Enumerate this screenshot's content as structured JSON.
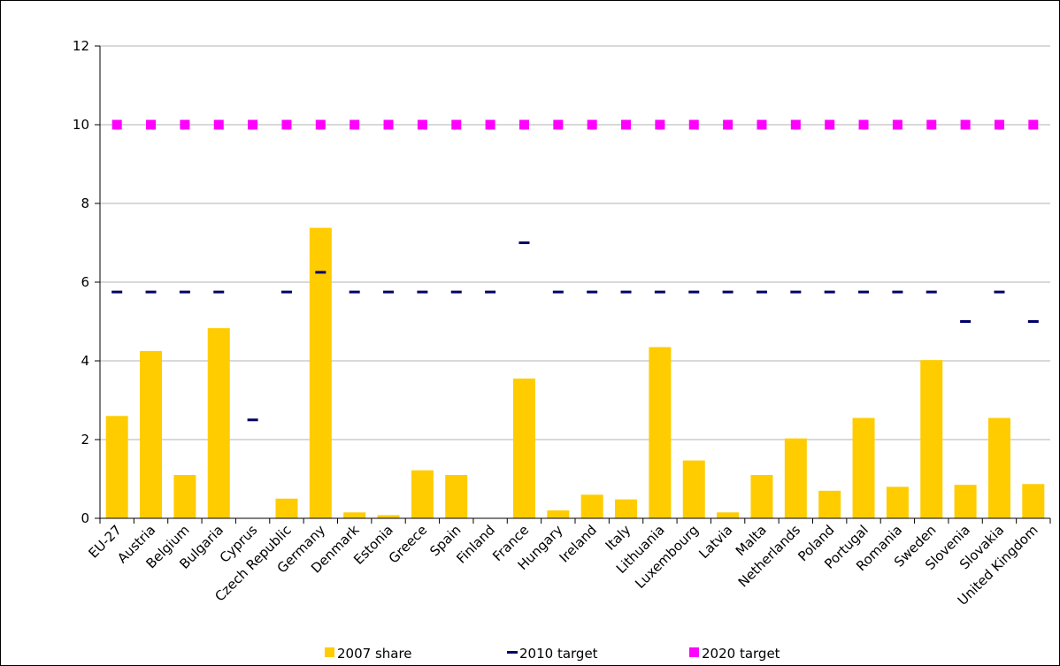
{
  "chart_data": {
    "type": "bar",
    "title": "",
    "xlabel": "",
    "ylabel": "",
    "ylim": [
      0,
      12
    ],
    "yticks": [
      "0",
      "2",
      "4",
      "6",
      "8",
      "10",
      "12"
    ],
    "grid": "horizontal",
    "legend_position": "bottom",
    "categories": [
      "EU-27",
      "Austria",
      "Belgium",
      "Bulgaria",
      "Cyprus",
      "Czech Republic",
      "Germany",
      "Denmark",
      "Estonia",
      "Greece",
      "Spain",
      "Finland",
      "France",
      "Hungary",
      "Ireland",
      "Italy",
      "Lithuania",
      "Luxembourg",
      "Latvia",
      "Malta",
      "Netherlands",
      "Poland",
      "Portugal",
      "Romania",
      "Sweden",
      "Slovenia",
      "Slovakia",
      "United Kingdom"
    ],
    "series": [
      {
        "name": "2007 share",
        "kind": "bar",
        "color": "#ffcc00",
        "values": [
          2.6,
          4.25,
          1.1,
          4.83,
          0,
          0.5,
          7.38,
          0.15,
          0.08,
          1.22,
          1.1,
          0,
          3.55,
          0.2,
          0.6,
          0.48,
          4.35,
          1.47,
          0.15,
          1.1,
          2.03,
          0.7,
          2.55,
          0.8,
          4.02,
          0.85,
          2.55,
          0.87
        ]
      },
      {
        "name": "2010 target",
        "kind": "dash",
        "color": "#000066",
        "values": [
          5.75,
          5.75,
          5.75,
          5.75,
          2.5,
          5.75,
          6.25,
          5.75,
          5.75,
          5.75,
          5.75,
          5.75,
          7.0,
          5.75,
          5.75,
          5.75,
          5.75,
          5.75,
          5.75,
          5.75,
          5.75,
          5.75,
          5.75,
          5.75,
          5.75,
          5.0,
          5.75,
          5.0
        ]
      },
      {
        "name": "2020 target",
        "kind": "square",
        "color": "#ff00ff",
        "values": [
          10,
          10,
          10,
          10,
          10,
          10,
          10,
          10,
          10,
          10,
          10,
          10,
          10,
          10,
          10,
          10,
          10,
          10,
          10,
          10,
          10,
          10,
          10,
          10,
          10,
          10,
          10,
          10
        ]
      }
    ]
  }
}
